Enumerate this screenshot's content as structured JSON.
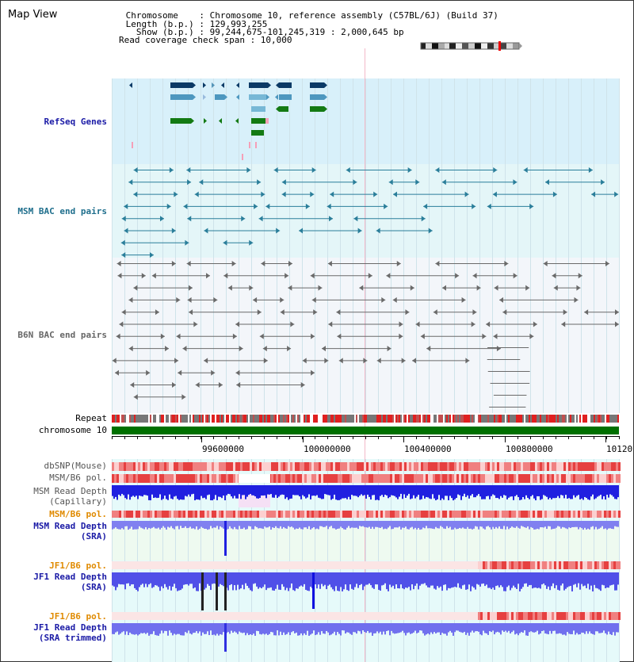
{
  "map_view": {
    "title": "Map View",
    "info": [
      " Chromosome    : Chromosome 10, reference assembly (C57BL/6J) (Build 37)",
      " Length (b.p.) : 129,993,255",
      "   Show (b.p.) : 99,244,675-101,245,319 : 2,000,645 bp",
      "Read coverage check span : 10,000"
    ]
  },
  "tracks": {
    "refseq": "RefSeq Genes",
    "msm_bac": "MSM BAC end pairs",
    "b6n_bac": "B6N BAC end pairs",
    "repeat": "Repeat",
    "chromosome": "chromosome 10",
    "dbsnp": "dbSNP(Mouse)",
    "msm_b6_pol_1": "MSM/B6 pol.",
    "msm_depth_cap_1": "MSM Read Depth",
    "msm_depth_cap_2": "(Capillary)",
    "msm_b6_pol_2": "MSM/B6 pol.",
    "msm_depth_sra_1": "MSM Read Depth",
    "msm_depth_sra_2": "(SRA)",
    "jf1_b6_pol_1": "JF1/B6 pol.",
    "jf1_depth_sra_1": "JF1 Read Depth",
    "jf1_depth_sra_2": "(SRA)",
    "jf1_b6_pol_2": "JF1/B6 pol.",
    "jf1_depth_trim_1": "JF1 Read Depth",
    "jf1_depth_trim_2": "(SRA trimmed)"
  },
  "axis": {
    "ticks": [
      "99600000",
      "100000000",
      "100400000",
      "100800000",
      "10120"
    ]
  },
  "colors": {
    "refseq_label": "#1a1aa6",
    "msm_label": "#1e6e8c",
    "b6n_label": "#666666",
    "pol_label": "#e08a00",
    "depth_label": "#1a1aa6",
    "refseq_bg": "#d8f0fa",
    "msm_bg": "#e4f6f8",
    "b6n_bg": "#f3f6fa",
    "chromosome": "#007000"
  }
}
